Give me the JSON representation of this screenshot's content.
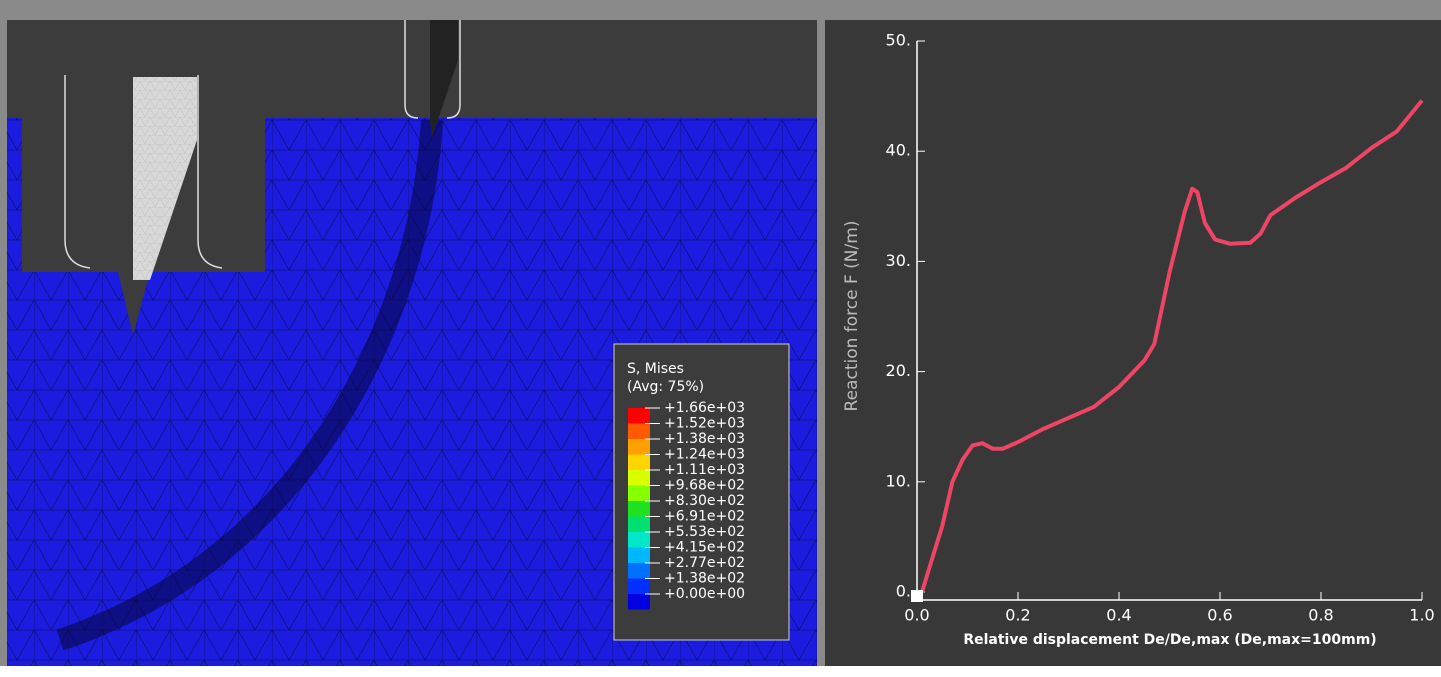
{
  "chart_data": {
    "type": "line",
    "ylabel": "Reaction force F (N/m)",
    "xlabel": "Relative displacement De/De,max (De,max=100mm)",
    "x": [
      0.01,
      0.03,
      0.05,
      0.07,
      0.09,
      0.11,
      0.13,
      0.15,
      0.17,
      0.2,
      0.25,
      0.3,
      0.35,
      0.4,
      0.45,
      0.47,
      0.5,
      0.53,
      0.545,
      0.555,
      0.57,
      0.59,
      0.62,
      0.66,
      0.68,
      0.7,
      0.75,
      0.8,
      0.85,
      0.9,
      0.95,
      1.0
    ],
    "values": [
      0,
      3,
      6,
      10,
      12,
      13.3,
      13.5,
      13.0,
      13.0,
      13.6,
      14.8,
      15.8,
      16.8,
      18.6,
      21,
      22.5,
      29,
      34.5,
      36.6,
      36.3,
      33.5,
      32,
      31.6,
      31.7,
      32.5,
      34.2,
      35.8,
      37.2,
      38.5,
      40.3,
      41.8,
      44.6
    ],
    "color": "#ee4466",
    "xlim": [
      0,
      1.0
    ],
    "ylim": [
      0,
      50
    ],
    "xticks": [
      {
        "value": 0,
        "label": "0.0"
      },
      0.2,
      0.4,
      0.6,
      0.8,
      {
        "value": 1.0,
        "label": "1.0"
      }
    ],
    "yticks": [
      {
        "value": 0,
        "label": "0."
      },
      {
        "value": 10,
        "label": "10."
      },
      {
        "value": 20,
        "label": "20."
      },
      {
        "value": 30,
        "label": "30."
      },
      {
        "value": 40,
        "label": "40."
      },
      {
        "value": 50,
        "label": "50."
      }
    ]
  },
  "contour_legend": {
    "title": "S, Mises",
    "subtitle": "(Avg: 75%)",
    "labels": [
      "+1.66e+03",
      "+1.52e+03",
      "+1.38e+03",
      "+1.24e+03",
      "+1.11e+03",
      "+9.68e+02",
      "+8.30e+02",
      "+6.91e+02",
      "+5.53e+02",
      "+4.15e+02",
      "+2.77e+02",
      "+1.38e+02",
      "+0.00e+00"
    ],
    "colors": [
      "#ff0000",
      "#ff5a00",
      "#ffa000",
      "#ffd400",
      "#d8ff00",
      "#86ff00",
      "#20e020",
      "#00e070",
      "#00e8c8",
      "#00b8ff",
      "#0070ff",
      "#0030ff",
      "#0000e0"
    ]
  }
}
